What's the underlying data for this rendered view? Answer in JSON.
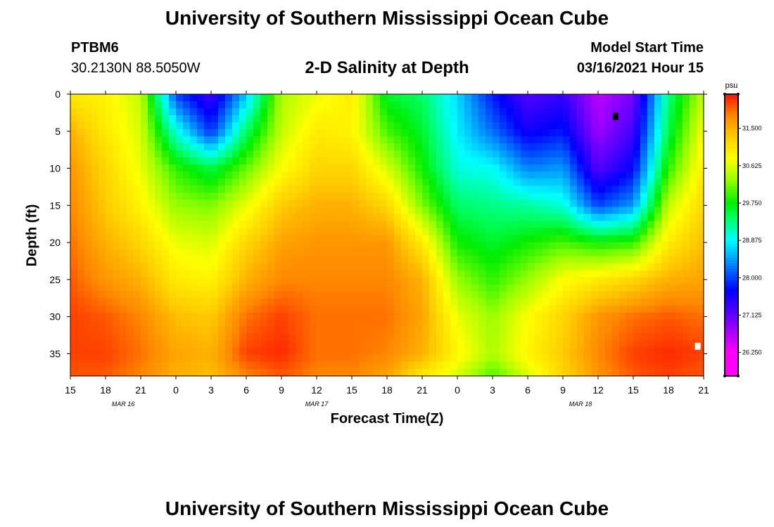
{
  "header": {
    "title": "University of Southern Mississippi Ocean Cube",
    "station": "PTBM6",
    "coordinates": "30.2130N 88.5050W",
    "model_start_label": "Model Start Time",
    "model_start_value": "03/16/2021 Hour 15"
  },
  "footer": {
    "title": "University of Southern Mississippi Ocean Cube"
  },
  "chart_data": {
    "type": "heatmap",
    "title": "2-D Salinity at Depth",
    "xlabel": "Forecast Time(Z)",
    "ylabel": "Depth (ft)",
    "x_range_hours": [
      0,
      54
    ],
    "x_tick_labels": [
      "15",
      "18",
      "21",
      "0",
      "3",
      "6",
      "9",
      "12",
      "15",
      "18",
      "21",
      "0",
      "3",
      "6",
      "9",
      "12",
      "15",
      "18",
      "21"
    ],
    "date_labels": [
      {
        "label": "MAR 16",
        "hour": 4.5
      },
      {
        "label": "MAR 17",
        "hour": 21
      },
      {
        "label": "MAR 18",
        "hour": 43.5
      }
    ],
    "y_range": [
      0,
      38
    ],
    "y_ticks": [
      0,
      5,
      10,
      15,
      20,
      25,
      30,
      35
    ],
    "colorbar": {
      "unit": "psu",
      "range": [
        25.7,
        32.3
      ],
      "tick_values": [
        31.5,
        30.625,
        29.75,
        28.875,
        28.0,
        27.125,
        26.25
      ],
      "tick_labels": [
        "31.500",
        "30.625",
        "29.750",
        "28.875",
        "28.000",
        "27.125",
        "26.250"
      ],
      "stops": [
        {
          "v": 25.7,
          "c": "#ff00ff"
        },
        {
          "v": 26.25,
          "c": "#ff00ff"
        },
        {
          "v": 27.0,
          "c": "#7700ff"
        },
        {
          "v": 27.7,
          "c": "#0000ff"
        },
        {
          "v": 28.4,
          "c": "#0099ff"
        },
        {
          "v": 28.875,
          "c": "#00ffff"
        },
        {
          "v": 29.4,
          "c": "#00ff66"
        },
        {
          "v": 29.75,
          "c": "#00ee00"
        },
        {
          "v": 30.3,
          "c": "#99ff00"
        },
        {
          "v": 30.8,
          "c": "#ffff00"
        },
        {
          "v": 31.3,
          "c": "#ffcc00"
        },
        {
          "v": 31.8,
          "c": "#ff8800"
        },
        {
          "v": 32.3,
          "c": "#ff1100"
        }
      ]
    },
    "time_hours": [
      0,
      3,
      6,
      9,
      12,
      15,
      18,
      21,
      24,
      27,
      30,
      33,
      36,
      39,
      42,
      45,
      48,
      51,
      54
    ],
    "depths_ft": [
      0,
      5,
      10,
      15,
      20,
      25,
      30,
      35,
      38
    ],
    "salinity_psu_by_time": [
      [
        31.0,
        31.5,
        31.7,
        31.8,
        31.9,
        32.0,
        32.1,
        32.1,
        32.0
      ],
      [
        30.9,
        31.0,
        31.2,
        31.3,
        31.5,
        31.7,
        32.0,
        32.1,
        32.0
      ],
      [
        30.5,
        30.6,
        30.7,
        30.9,
        31.2,
        31.5,
        31.8,
        31.9,
        31.8
      ],
      [
        28.0,
        29.0,
        29.9,
        30.3,
        30.7,
        31.0,
        31.4,
        31.6,
        31.5
      ],
      [
        27.3,
        27.9,
        29.5,
        30.2,
        30.6,
        30.9,
        31.3,
        31.5,
        31.4
      ],
      [
        28.6,
        29.4,
        30.1,
        30.7,
        31.2,
        31.5,
        31.9,
        32.1,
        31.8
      ],
      [
        30.4,
        30.5,
        30.8,
        31.3,
        31.6,
        31.8,
        32.1,
        32.2,
        32.0
      ],
      [
        30.7,
        31.0,
        31.2,
        31.5,
        31.7,
        31.8,
        31.9,
        31.9,
        31.8
      ],
      [
        31.0,
        30.9,
        31.2,
        31.5,
        31.7,
        31.8,
        31.9,
        31.9,
        31.8
      ],
      [
        29.6,
        30.0,
        30.6,
        31.2,
        31.7,
        31.8,
        31.9,
        31.8,
        31.6
      ],
      [
        29.4,
        29.6,
        29.8,
        30.2,
        31.0,
        31.5,
        31.6,
        31.5,
        31.0
      ],
      [
        28.7,
        28.8,
        29.0,
        29.4,
        29.8,
        30.3,
        30.7,
        30.9,
        30.6
      ],
      [
        27.8,
        28.2,
        28.9,
        29.3,
        29.6,
        29.9,
        30.3,
        30.4,
        30.0
      ],
      [
        27.2,
        27.6,
        28.3,
        29.2,
        29.8,
        30.3,
        30.8,
        30.9,
        30.6
      ],
      [
        27.4,
        27.8,
        28.4,
        29.0,
        30.0,
        30.8,
        31.2,
        31.3,
        31.2
      ],
      [
        26.6,
        26.8,
        27.2,
        28.0,
        29.8,
        31.0,
        31.7,
        31.8,
        31.7
      ],
      [
        27.0,
        27.3,
        27.7,
        28.4,
        29.9,
        31.2,
        31.9,
        32.1,
        32.0
      ],
      [
        29.3,
        29.5,
        29.9,
        30.5,
        31.0,
        31.5,
        32.0,
        32.2,
        32.1
      ],
      [
        30.5,
        30.8,
        31.0,
        31.2,
        31.4,
        31.6,
        31.9,
        32.1,
        32.0
      ]
    ],
    "markers": [
      {
        "name": "min-marker",
        "hour": 46.5,
        "depth": 3,
        "color": "#000000"
      },
      {
        "name": "max-marker",
        "hour": 53.5,
        "depth": 34,
        "color": "#ffffff"
      }
    ]
  }
}
